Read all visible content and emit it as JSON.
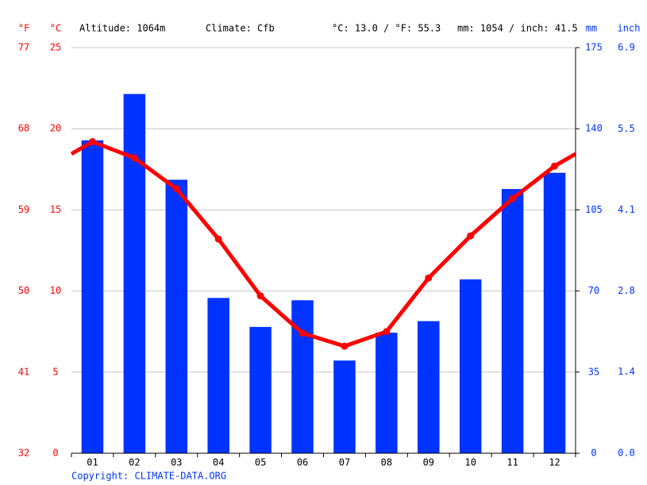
{
  "chart_data": {
    "type": "bar",
    "annotations": [
      "Altitude: 1064m",
      "Climate: Cfb",
      "°C: 13.0 / °F: 55.3",
      "mm: 1054 / inch: 41.5"
    ],
    "source": "Copyright: CLIMATE-DATA.ORG",
    "categories": [
      "01",
      "02",
      "03",
      "04",
      "05",
      "06",
      "07",
      "08",
      "09",
      "10",
      "11",
      "12"
    ],
    "series": [
      {
        "type": "bar",
        "axis": "y2",
        "color": "#0033ff",
        "values": [
          135,
          155,
          118,
          67,
          54.5,
          66,
          40,
          52,
          57,
          75,
          114,
          121
        ]
      },
      {
        "type": "line",
        "axis": "y",
        "color": "#ff0000",
        "values": [
          19.2,
          18.2,
          16.3,
          13.2,
          9.7,
          7.4,
          6.6,
          7.5,
          10.8,
          13.4,
          15.7,
          17.7
        ]
      }
    ],
    "y_unit": "°C",
    "ylim": [
      0,
      25
    ],
    "yticks": [
      0,
      5,
      10,
      15,
      20,
      25
    ],
    "y_unit_f": "°F",
    "ylim_f": [
      32,
      77
    ],
    "yticks_f": [
      32,
      41,
      50,
      59,
      68,
      77
    ],
    "y2_unit": "mm",
    "y2lim": [
      0,
      175
    ],
    "y2ticks": [
      0,
      35,
      70,
      105,
      140,
      175
    ],
    "y2_unit_inch": "inch",
    "y2lim_inch": [
      0,
      6.89
    ],
    "y2ticks_inch": [
      {
        "value": 0,
        "label": "0.0"
      },
      {
        "value": 1.38,
        "label": "1.4"
      },
      {
        "value": 2.76,
        "label": "2.8"
      },
      {
        "value": 4.13,
        "label": "4.1"
      },
      {
        "value": 5.51,
        "label": "5.5"
      },
      {
        "value": 6.89,
        "label": "6.9"
      }
    ],
    "grid": true
  }
}
